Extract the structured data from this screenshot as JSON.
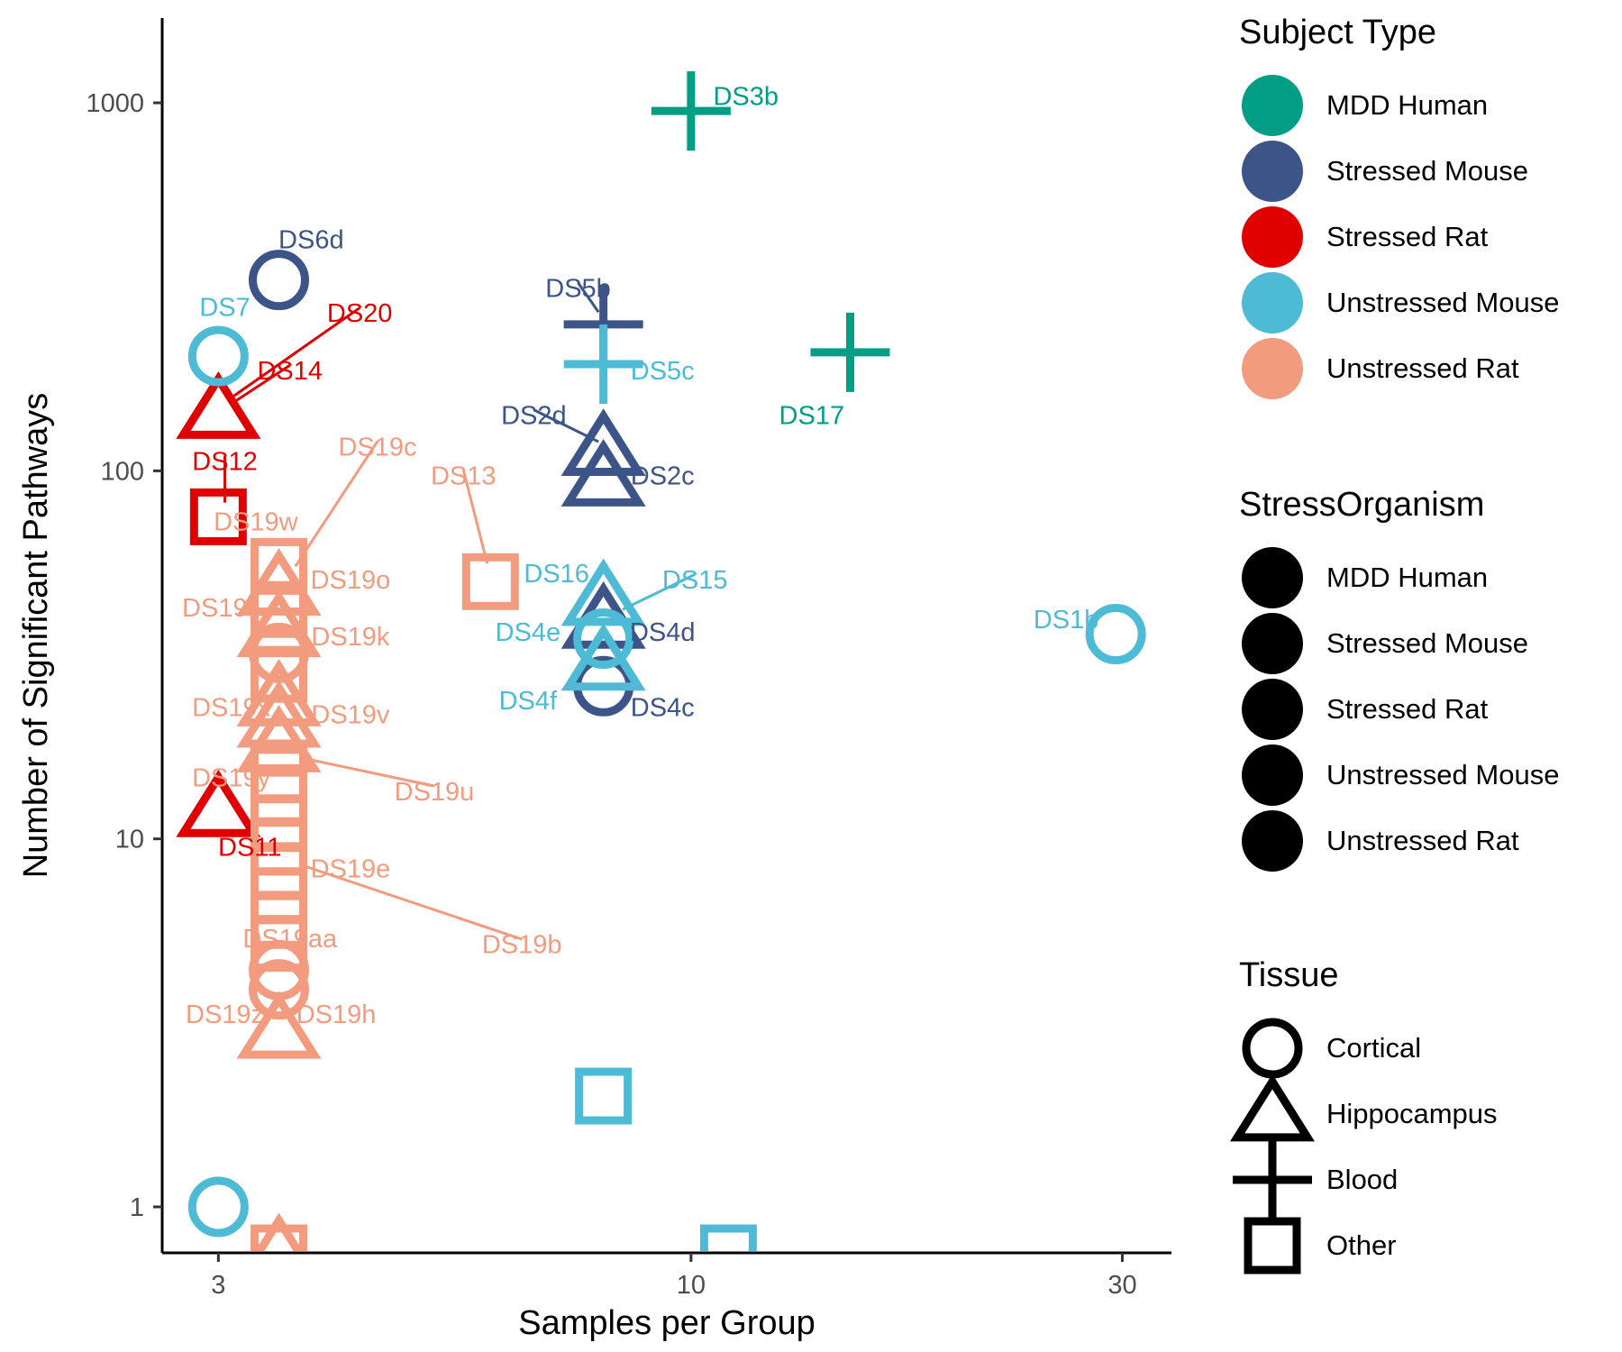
{
  "chart_data": {
    "type": "scatter",
    "title": "",
    "xlabel": "Samples per Group",
    "ylabel": "Number of Significant Pathways",
    "x_scale": "log",
    "y_scale": "log",
    "xlim": [
      2.6,
      34
    ],
    "ylim": [
      0.75,
      1700
    ],
    "x_ticks": [
      {
        "value": 3,
        "label": "3"
      },
      {
        "value": 10,
        "label": "10"
      },
      {
        "value": 30,
        "label": "30"
      }
    ],
    "y_ticks": [
      {
        "value": 1,
        "label": "1"
      },
      {
        "value": 10,
        "label": "10"
      },
      {
        "value": 100,
        "label": "100"
      },
      {
        "value": 1000,
        "label": "1000"
      }
    ],
    "grid": false,
    "legend_position": "right",
    "colors": {
      "MDD Human": "#009E85",
      "Stressed Mouse": "#3C5488",
      "Stressed Rat": "#E00000",
      "Unstressed Mouse": "#4DBBD5",
      "Unstressed Rat": "#F39B7F"
    },
    "legends": [
      {
        "title": "Subject Type",
        "kind": "color",
        "entries": [
          {
            "label": "MDD Human",
            "color": "#009E85"
          },
          {
            "label": "Stressed Mouse",
            "color": "#3C5488"
          },
          {
            "label": "Stressed Rat",
            "color": "#E00000"
          },
          {
            "label": "Unstressed Mouse",
            "color": "#4DBBD5"
          },
          {
            "label": "Unstressed Rat",
            "color": "#F39B7F"
          }
        ]
      },
      {
        "title": "StressOrganism",
        "kind": "filled",
        "entries": [
          {
            "label": "MDD Human"
          },
          {
            "label": "Stressed Mouse"
          },
          {
            "label": "Stressed Rat"
          },
          {
            "label": "Unstressed Mouse"
          },
          {
            "label": "Unstressed Rat"
          }
        ]
      },
      {
        "title": "Tissue",
        "kind": "shape",
        "entries": [
          {
            "label": "Cortical",
            "shape": "circle"
          },
          {
            "label": "Hippocampus",
            "shape": "triangle"
          },
          {
            "label": "Blood",
            "shape": "plus"
          },
          {
            "label": "Other",
            "shape": "square"
          }
        ]
      }
    ],
    "points": [
      {
        "x": 10,
        "y": 950,
        "subject": "MDD Human",
        "tissue": "plus"
      },
      {
        "x": 15,
        "y": 210,
        "subject": "MDD Human",
        "tissue": "plus"
      },
      {
        "x": 3.5,
        "y": 330,
        "subject": "Stressed Mouse",
        "tissue": "circle"
      },
      {
        "x": 8,
        "y": 250,
        "subject": "Stressed Mouse",
        "tissue": "plus"
      },
      {
        "x": 8,
        "y": 115,
        "subject": "Stressed Mouse",
        "tissue": "triangle"
      },
      {
        "x": 8,
        "y": 95,
        "subject": "Stressed Mouse",
        "tissue": "triangle"
      },
      {
        "x": 8,
        "y": 39,
        "subject": "Stressed Mouse",
        "tissue": "triangle"
      },
      {
        "x": 8,
        "y": 26,
        "subject": "Stressed Mouse",
        "tissue": "circle"
      },
      {
        "x": 3,
        "y": 145,
        "subject": "Stressed Rat",
        "tissue": "triangle"
      },
      {
        "x": 3,
        "y": 75,
        "subject": "Stressed Rat",
        "tissue": "square"
      },
      {
        "x": 3,
        "y": 12,
        "subject": "Stressed Rat",
        "tissue": "triangle"
      },
      {
        "x": 3,
        "y": 205,
        "subject": "Unstressed Mouse",
        "tissue": "circle"
      },
      {
        "x": 3,
        "y": 1,
        "subject": "Unstressed Mouse",
        "tissue": "circle"
      },
      {
        "x": 8,
        "y": 195,
        "subject": "Unstressed Mouse",
        "tissue": "plus"
      },
      {
        "x": 8,
        "y": 45,
        "subject": "Unstressed Mouse",
        "tissue": "triangle"
      },
      {
        "x": 8,
        "y": 35,
        "subject": "Unstressed Mouse",
        "tissue": "circle"
      },
      {
        "x": 8,
        "y": 30,
        "subject": "Unstressed Mouse",
        "tissue": "triangle"
      },
      {
        "x": 8,
        "y": 2,
        "subject": "Unstressed Mouse",
        "tissue": "square"
      },
      {
        "x": 11,
        "y": 0.75,
        "subject": "Unstressed Mouse",
        "tissue": "square"
      },
      {
        "x": 29.5,
        "y": 36,
        "subject": "Unstressed Mouse",
        "tissue": "circle"
      },
      {
        "x": 6,
        "y": 50,
        "subject": "Unstressed Rat",
        "tissue": "square"
      },
      {
        "x": 3.5,
        "y": 55,
        "subject": "Unstressed Rat",
        "tissue": "square"
      },
      {
        "x": 3.5,
        "y": 48,
        "subject": "Unstressed Rat",
        "tissue": "triangle"
      },
      {
        "x": 3.5,
        "y": 42,
        "subject": "Unstressed Rat",
        "tissue": "square"
      },
      {
        "x": 3.5,
        "y": 37,
        "subject": "Unstressed Rat",
        "tissue": "triangle"
      },
      {
        "x": 3.5,
        "y": 32,
        "subject": "Unstressed Rat",
        "tissue": "circle"
      },
      {
        "x": 3.5,
        "y": 28,
        "subject": "Unstressed Rat",
        "tissue": "square"
      },
      {
        "x": 3.5,
        "y": 24,
        "subject": "Unstressed Rat",
        "tissue": "triangle"
      },
      {
        "x": 3.5,
        "y": 21,
        "subject": "Unstressed Rat",
        "tissue": "triangle"
      },
      {
        "x": 3.5,
        "y": 18,
        "subject": "Unstressed Rat",
        "tissue": "triangle"
      },
      {
        "x": 3.5,
        "y": 15,
        "subject": "Unstressed Rat",
        "tissue": "square"
      },
      {
        "x": 3.5,
        "y": 13,
        "subject": "Unstressed Rat",
        "tissue": "square"
      },
      {
        "x": 3.5,
        "y": 11,
        "subject": "Unstressed Rat",
        "tissue": "square"
      },
      {
        "x": 3.5,
        "y": 9.5,
        "subject": "Unstressed Rat",
        "tissue": "square"
      },
      {
        "x": 3.5,
        "y": 8.2,
        "subject": "Unstressed Rat",
        "tissue": "square"
      },
      {
        "x": 3.5,
        "y": 7,
        "subject": "Unstressed Rat",
        "tissue": "square"
      },
      {
        "x": 3.5,
        "y": 6,
        "subject": "Unstressed Rat",
        "tissue": "square"
      },
      {
        "x": 3.5,
        "y": 5.2,
        "subject": "Unstressed Rat",
        "tissue": "square"
      },
      {
        "x": 3.5,
        "y": 4.4,
        "subject": "Unstressed Rat",
        "tissue": "circle"
      },
      {
        "x": 3.5,
        "y": 3.9,
        "subject": "Unstressed Rat",
        "tissue": "circle"
      },
      {
        "x": 3.5,
        "y": 3,
        "subject": "Unstressed Rat",
        "tissue": "triangle"
      },
      {
        "x": 3.5,
        "y": 0.75,
        "subject": "Unstressed Rat",
        "tissue": "triangle"
      },
      {
        "x": 3.5,
        "y": 0.75,
        "subject": "Unstressed Rat",
        "tissue": "square"
      }
    ],
    "labels": [
      {
        "text": "DS3b",
        "subject": "MDD Human",
        "x": 11.5,
        "y": 1030
      },
      {
        "text": "DS17",
        "subject": "MDD Human",
        "x": 13.6,
        "y": 140
      },
      {
        "text": "DS6d",
        "subject": "Stressed Mouse",
        "x": 3.8,
        "y": 420
      },
      {
        "text": "DS5b",
        "subject": "Stressed Mouse",
        "x": 7.5,
        "y": 310,
        "leader_to": {
          "x": 7.9,
          "y": 270
        }
      },
      {
        "text": "DS2d",
        "subject": "Stressed Mouse",
        "x": 6.7,
        "y": 140,
        "leader_to": {
          "x": 7.9,
          "y": 120
        }
      },
      {
        "text": "DS2c",
        "subject": "Stressed Mouse",
        "x": 9.3,
        "y": 96
      },
      {
        "text": "DS4d",
        "subject": "Stressed Mouse",
        "x": 9.3,
        "y": 36
      },
      {
        "text": "DS4c",
        "subject": "Stressed Mouse",
        "x": 9.3,
        "y": 22.5
      },
      {
        "text": "DS14",
        "subject": "Stressed Rat",
        "x": 3.6,
        "y": 185,
        "leader_to": {
          "x": 3.1,
          "y": 152
        }
      },
      {
        "text": "DS20",
        "subject": "Stressed Rat",
        "x": 4.3,
        "y": 265,
        "leader_to": {
          "x": 3.1,
          "y": 158
        }
      },
      {
        "text": "DS12",
        "subject": "Stressed Rat",
        "x": 3.05,
        "y": 105,
        "leader_to": {
          "x": 3.05,
          "y": 82
        }
      },
      {
        "text": "DS11",
        "subject": "Stressed Rat",
        "x": 3.25,
        "y": 9.4
      },
      {
        "text": "DS7",
        "subject": "Unstressed Mouse",
        "x": 3.05,
        "y": 275
      },
      {
        "text": "DS5c",
        "subject": "Unstressed Mouse",
        "x": 9.3,
        "y": 185
      },
      {
        "text": "DS16",
        "subject": "Unstressed Mouse",
        "x": 7.1,
        "y": 52
      },
      {
        "text": "DS15",
        "subject": "Unstressed Mouse",
        "x": 10.1,
        "y": 50,
        "leader_to": {
          "x": 8.4,
          "y": 42
        }
      },
      {
        "text": "DS4e",
        "subject": "Unstressed Mouse",
        "x": 6.6,
        "y": 36
      },
      {
        "text": "DS4f",
        "subject": "Unstressed Mouse",
        "x": 6.6,
        "y": 23.5
      },
      {
        "text": "DS1b",
        "subject": "Unstressed Mouse",
        "x": 26.0,
        "y": 39
      },
      {
        "text": "DS19c",
        "subject": "Unstressed Rat",
        "x": 4.5,
        "y": 115,
        "leader_to": {
          "x": 3.65,
          "y": 55
        }
      },
      {
        "text": "DS13",
        "subject": "Unstressed Rat",
        "x": 5.6,
        "y": 96,
        "leader_to": {
          "x": 5.95,
          "y": 56
        }
      },
      {
        "text": "DS19w",
        "subject": "Unstressed Rat",
        "x": 3.3,
        "y": 72
      },
      {
        "text": "DS19o",
        "subject": "Unstressed Rat",
        "x": 4.2,
        "y": 50
      },
      {
        "text": "DS19f",
        "subject": "Unstressed Rat",
        "x": 3.0,
        "y": 42
      },
      {
        "text": "DS19k",
        "subject": "Unstressed Rat",
        "x": 4.2,
        "y": 35
      },
      {
        "text": "DS19x",
        "subject": "Unstressed Rat",
        "x": 3.1,
        "y": 22.5
      },
      {
        "text": "DS19v",
        "subject": "Unstressed Rat",
        "x": 4.2,
        "y": 21.5
      },
      {
        "text": "DS19y",
        "subject": "Unstressed Rat",
        "x": 3.1,
        "y": 14.5
      },
      {
        "text": "DS19u",
        "subject": "Unstressed Rat",
        "x": 5.2,
        "y": 13.3,
        "leader_to": {
          "x": 3.75,
          "y": 16.5
        }
      },
      {
        "text": "DS19e",
        "subject": "Unstressed Rat",
        "x": 4.2,
        "y": 8.2
      },
      {
        "text": "DS19aa",
        "subject": "Unstressed Rat",
        "x": 3.6,
        "y": 5.3
      },
      {
        "text": "DS19b",
        "subject": "Unstressed Rat",
        "x": 6.5,
        "y": 5.1,
        "leader_to": {
          "x": 3.7,
          "y": 8.5
        }
      },
      {
        "text": "DS19z",
        "subject": "Unstressed Rat",
        "x": 3.05,
        "y": 3.3
      },
      {
        "text": "DS19h",
        "subject": "Unstressed Rat",
        "x": 4.05,
        "y": 3.3
      }
    ]
  }
}
